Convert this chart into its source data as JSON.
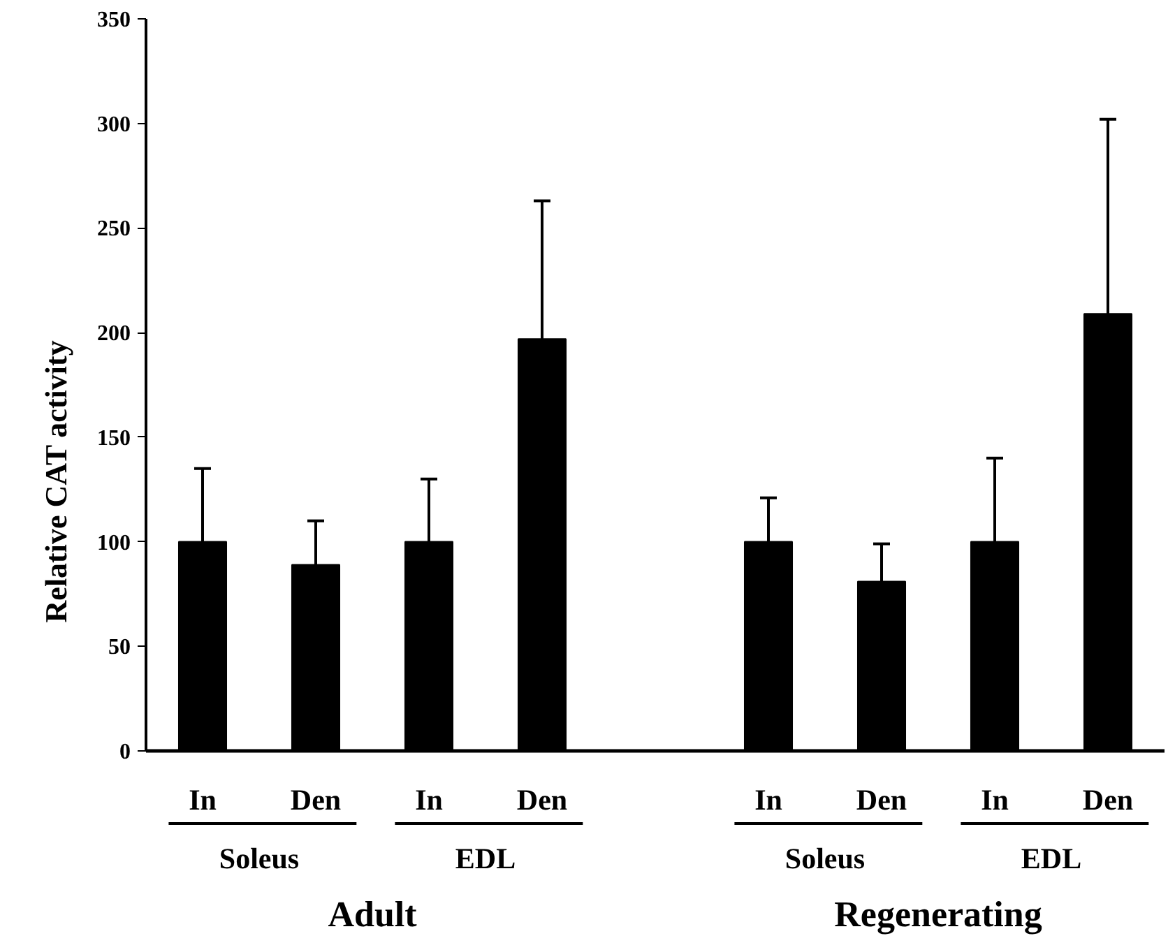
{
  "chart_data": {
    "type": "bar",
    "ylabel": "Relative CAT activity",
    "categories": [
      "In",
      "Den",
      "In",
      "Den",
      null,
      "In",
      "Den",
      "In",
      "Den"
    ],
    "values": [
      100,
      89,
      100,
      197,
      null,
      100,
      81,
      100,
      209
    ],
    "errors": [
      [
        100,
        135
      ],
      [
        89,
        110
      ],
      [
        100,
        130
      ],
      [
        197,
        263
      ],
      null,
      [
        100,
        121
      ],
      [
        81,
        99
      ],
      [
        100,
        140
      ],
      [
        209,
        302
      ]
    ],
    "color": "#000000",
    "ylim": [
      0,
      350
    ],
    "yticks": [
      0,
      50,
      100,
      150,
      200,
      250,
      300,
      350
    ],
    "grid": false,
    "annotations": [
      "Soleus",
      "EDL",
      "Soleus",
      "EDL",
      "Adult",
      "Regenerating"
    ]
  }
}
